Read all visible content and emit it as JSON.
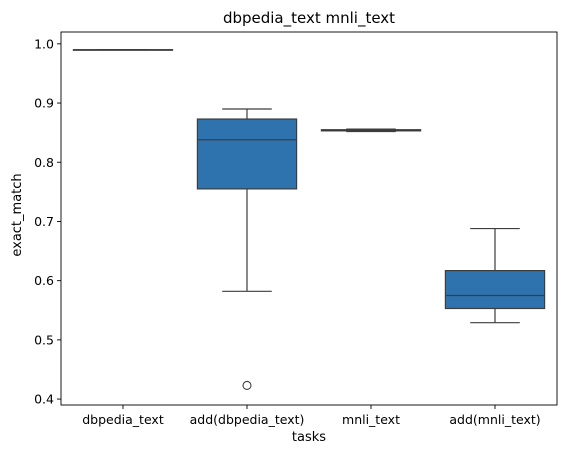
{
  "chart_data": {
    "type": "box",
    "title": "dbpedia_text mnli_text",
    "xlabel": "tasks",
    "ylabel": "exact_match",
    "ylim": [
      0.39,
      1.02
    ],
    "yticks": [
      "0.4",
      "0.5",
      "0.6",
      "0.7",
      "0.8",
      "0.9",
      "1.0"
    ],
    "box_color": "#2f73ae",
    "line_color": "#3d3d3d",
    "grid": false,
    "categories": [
      "dbpedia_text",
      "add(dbpedia_text)",
      "mnli_text",
      "add(mnli_text)"
    ],
    "boxes": [
      {
        "whisker_low": 0.99,
        "q1": 0.99,
        "median": 0.99,
        "q3": 0.99,
        "whisker_high": 0.99,
        "outliers": []
      },
      {
        "whisker_low": 0.582,
        "q1": 0.755,
        "median": 0.838,
        "q3": 0.873,
        "whisker_high": 0.89,
        "outliers": [
          0.423
        ]
      },
      {
        "whisker_low": 0.852,
        "q1": 0.853,
        "median": 0.854,
        "q3": 0.855,
        "whisker_high": 0.856,
        "outliers": []
      },
      {
        "whisker_low": 0.529,
        "q1": 0.553,
        "median": 0.575,
        "q3": 0.617,
        "whisker_high": 0.688,
        "outliers": []
      }
    ]
  }
}
